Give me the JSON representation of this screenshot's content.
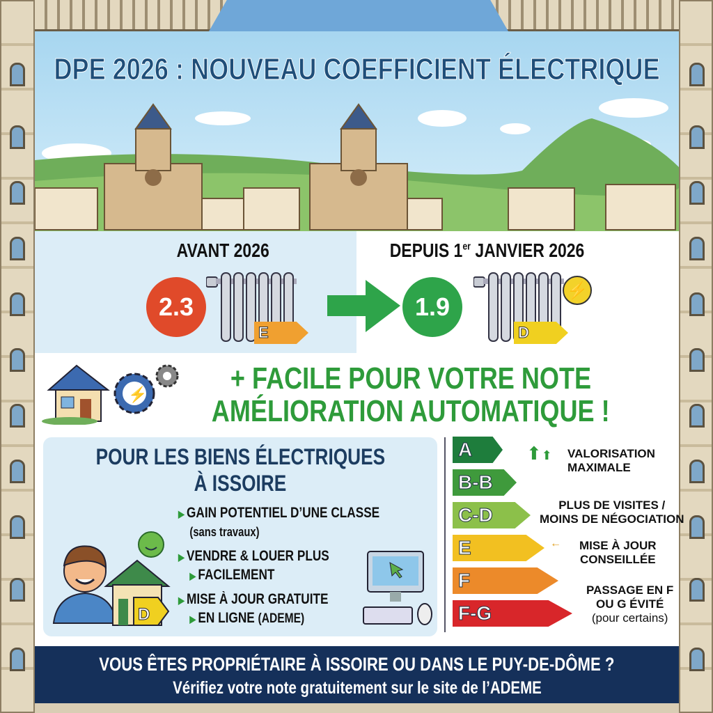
{
  "title": "DPE 2026 : NOUVEAU COEFFICIENT ÉLECTRIQUE",
  "colors": {
    "title": "#1f4e79",
    "green": "#2e9b3a",
    "red": "#e04a2a",
    "navy": "#15305a",
    "sky": "#a9d8f1",
    "panel": "#dcedf7"
  },
  "comparison": {
    "before": {
      "label": "AVANT 2026",
      "coefficient": "2.3",
      "class": "E",
      "class_color": "#f0a030"
    },
    "after": {
      "label_main": "DEPUIS 1",
      "label_sup": "er",
      "label_rest": " JANVIER 2026",
      "coefficient": "1.9",
      "class": "D",
      "class_color": "#f0d020"
    },
    "arrow_icon": "arrow-right-icon"
  },
  "headline": {
    "line1": "+ FACILE POUR VOTRE NOTE",
    "line2": "AMÉLIORATION AUTOMATIQUE !"
  },
  "benefits": {
    "title_line1": "POUR LES BIENS ÉLECTRIQUES",
    "title_line2": "À ISSOIRE",
    "items": [
      {
        "bold": "GAIN POTENTIEL D’UNE CLASSE",
        "normal": "(sans travaux)"
      },
      {
        "bold": "VENDRE & LOUER PLUS",
        "bold2": "FACILEMENT"
      },
      {
        "bold": "MISE À JOUR GRATUITE",
        "bold2": "EN LIGNE",
        "normal": "(ADEME)"
      }
    ],
    "house_class": "D"
  },
  "energy_scale": {
    "bars": [
      {
        "label": "A",
        "color": "#1e7d3c"
      },
      {
        "label": "B-B",
        "color": "#3f9a3c"
      },
      {
        "label": "C-D",
        "color": "#8cc04a"
      },
      {
        "label": "E",
        "color": "#f2c021"
      },
      {
        "label": "F",
        "color": "#ec8a2a"
      },
      {
        "label": "F-G",
        "color": "#d8262a"
      }
    ],
    "notes": [
      {
        "line1": "VALORISATION",
        "line2": "MAXIMALE"
      },
      {
        "line1": "PLUS DE VISITES /",
        "line2": "MOINS DE NÉGOCIATION"
      },
      {
        "line1": "MISE À JOUR",
        "line2": "CONSEILLÉE"
      },
      {
        "line1": "PASSAGE EN F",
        "line2": "OU G ÉVITÉ",
        "line3": "(pour certains)"
      }
    ]
  },
  "footer": {
    "line1": "VOUS ÊTES PROPRIÉTAIRE À ISSOIRE OU DANS LE PUY-DE-DÔME ?",
    "line2": "Vérifiez votre note gratuitement sur le site de l’ADEME"
  }
}
